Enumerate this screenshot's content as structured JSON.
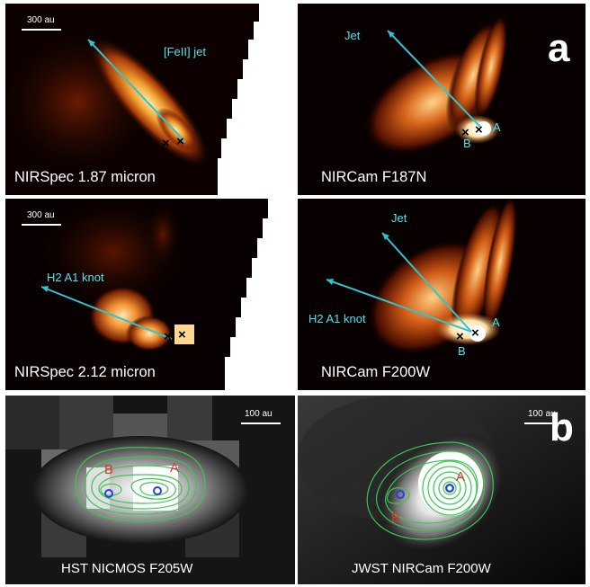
{
  "panel_letters": {
    "a": "a",
    "b": "b"
  },
  "panels": {
    "nirspec_187": {
      "label": "NIRSpec 1.87 micron",
      "scale": "300 au",
      "annotation": "[FeII] jet"
    },
    "nircam_f187n": {
      "label": "NIRCam F187N",
      "annotation": "Jet",
      "marker_a": "A",
      "marker_b": "B"
    },
    "nirspec_212": {
      "label": "NIRSpec 2.12 micron",
      "scale": "300 au",
      "annotation": "H2 A1 knot"
    },
    "nircam_f200w": {
      "label": "NIRCam F200W",
      "annotation_jet": "Jet",
      "annotation_knot": "H2 A1 knot",
      "marker_a": "A",
      "marker_b": "B"
    },
    "hst_nicmos": {
      "label": "HST NICMOS F205W",
      "scale": "100 au",
      "marker_a": "A",
      "marker_b": "B"
    },
    "jwst_nircam": {
      "label": "JWST NIRCam F200W",
      "scale": "100 au",
      "marker_a": "A",
      "marker_b": "B"
    }
  },
  "colors": {
    "arrow": "#2fc4cf",
    "annotation": "#4fe3ef",
    "source_label": "#e0342c",
    "contour": "#38c850",
    "circle": "#2a3ee8"
  }
}
